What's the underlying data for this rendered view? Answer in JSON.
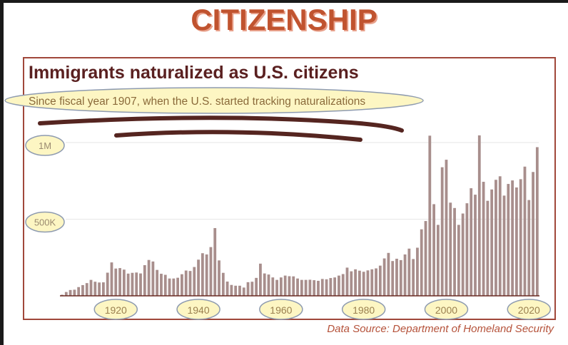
{
  "header": {
    "title": "CITIZENSHIP"
  },
  "chart_data": {
    "type": "bar",
    "title": "Immigrants naturalized as U.S. citizens",
    "subtitle": "Since fiscal year 1907, when the U.S. started tracking naturalizations",
    "source": "Data Source: Department of Homeland Security",
    "xlabel": "",
    "ylabel": "",
    "x_start": 1907,
    "x_ticks": [
      "1920",
      "1940",
      "1960",
      "1980",
      "2000",
      "2020"
    ],
    "y_ticks": [
      {
        "value": 1000000,
        "label": "1M"
      },
      {
        "value": 500000,
        "label": "500K"
      }
    ],
    "ylim": [
      0,
      1050000
    ],
    "grid": true,
    "values_thousands": [
      7,
      25,
      38,
      40,
      57,
      70,
      83,
      104,
      92,
      87,
      88,
      151,
      218,
      178,
      181,
      171,
      145,
      150,
      152,
      146,
      200,
      234,
      224,
      169,
      144,
      137,
      113,
      113,
      118,
      141,
      165,
      162,
      188,
      236,
      278,
      270,
      318,
      442,
      231,
      150,
      93,
      71,
      66,
      66,
      54,
      89,
      92,
      117,
      210,
      146,
      139,
      120,
      104,
      120,
      132,
      128,
      127,
      113,
      104,
      104,
      105,
      102,
      98,
      110,
      108,
      116,
      120,
      132,
      142,
      184,
      160,
      173,
      164,
      157,
      166,
      173,
      179,
      197,
      244,
      280,
      227,
      242,
      233,
      270,
      308,
      240,
      314,
      434,
      488,
      1045,
      598,
      463,
      839,
      888,
      608,
      573,
      463,
      537,
      604,
      702,
      660,
      1047,
      744,
      620,
      694,
      757,
      780,
      654,
      730,
      753,
      707,
      761,
      843,
      625,
      808,
      970
    ],
    "colors": {
      "bar": "#a88e8c",
      "title": "#5a2020",
      "frame": "#a0473a",
      "highlight": "#fdf6c3",
      "highlight_stroke": "#8e9bb0",
      "brand": "#c0532f"
    }
  }
}
